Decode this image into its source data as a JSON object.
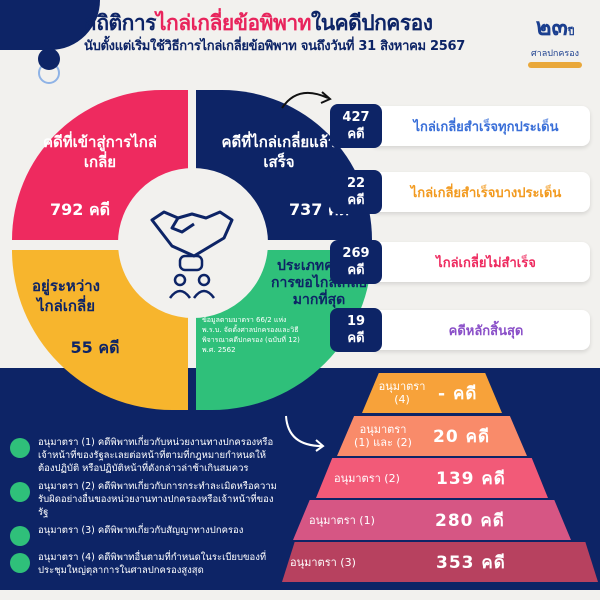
{
  "header": {
    "title_part1": "สถิติการ",
    "title_highlight": "ไกล่เกลี่ยข้อพิพาท",
    "title_part2": "ในคดีปกครอง",
    "subtitle": "นับตั้งแต่เริ่มใช้วิธีการไกล่เกลี่ยข้อพิพาท จนถึงวันที่ 31 สิงหาคม 2567",
    "logo_number": "๒๓",
    "logo_unit": "ปี",
    "logo_text": "ศาลปกครอง"
  },
  "quadrants": {
    "entered": {
      "label": "คดีที่เข้าสู่การไกล่เกลี่ย",
      "value": "792 คดี",
      "color": "#ee2a5f"
    },
    "completed": {
      "label": "คดีที่ไกล่เกลี่ยแล้วเสร็จ",
      "value": "737 คดี",
      "color": "#0d2466"
    },
    "pending": {
      "label": "อยู่ระหว่างไกล่เกลี่ย",
      "value": "55 คดี",
      "color": "#f7b52d"
    },
    "top_type": {
      "label": "ประเภทคดีที่มีการขอไกล่เกลี่ยมากที่สุด",
      "note": "ข้อมูลตามมาตรา 66/2 แห่ง พ.ร.บ. จัดตั้งศาลปกครองและวิธีพิจารณาคดีปกครอง (ฉบับที่ 12) พ.ศ. 2562",
      "color": "#2fc07a"
    }
  },
  "outcomes": [
    {
      "num": "427",
      "unit": "คดี",
      "label": "ไกล่เกลี่ยสำเร็จทุกประเด็น",
      "color": "#3a6fd8"
    },
    {
      "num": "22",
      "unit": "คดี",
      "label": "ไกล่เกลี่ยสำเร็จบางประเด็น",
      "color": "#f29a1f"
    },
    {
      "num": "269",
      "unit": "คดี",
      "label": "ไกล่เกลี่ยไม่สำเร็จ",
      "color": "#ee2a5f"
    },
    {
      "num": "19",
      "unit": "คดี",
      "label": "คดีหลักสิ้นสุด",
      "color": "#8a4fc8"
    }
  ],
  "legend": [
    "อนุมาตรา (1) คดีพิพาทเกี่ยวกับหน่วยงานทางปกครองหรือเจ้าหน้าที่ของรัฐละเลยต่อหน้าที่ตามที่กฎหมายกำหนดให้ต้องปฏิบัติ หรือปฏิบัติหน้าที่ดังกล่าวล่าช้าเกินสมควร",
    "อนุมาตรา (2) คดีพิพาทเกี่ยวกับการกระทำละเมิดหรือความรับผิดอย่างอื่นของหน่วยงานทางปกครองหรือเจ้าหน้าที่ของรัฐ",
    "อนุมาตรา (3) คดีพิพาทเกี่ยวกับสัญญาทางปกครอง",
    "อนุมาตรา (4) คดีพิพาทอื่นตามที่กำหนดในระเบียบของที่ประชุมใหญ่ตุลาการในศาลปกครองสูงสุด"
  ],
  "pyramid": [
    {
      "label": "อนุมาตรา (4)",
      "value": "- คดี",
      "color": "#f7a23a"
    },
    {
      "label": "อนุมาตรา (1) และ (2)",
      "value": "20 คดี",
      "color": "#f98b6a"
    },
    {
      "label": "อนุมาตรา (2)",
      "value": "139 คดี",
      "color": "#f25a78"
    },
    {
      "label": "อนุมาตรา (1)",
      "value": "280 คดี",
      "color": "#d65684"
    },
    {
      "label": "อนุมาตรา (3)",
      "value": "353 คดี",
      "color": "#b7415f"
    }
  ]
}
